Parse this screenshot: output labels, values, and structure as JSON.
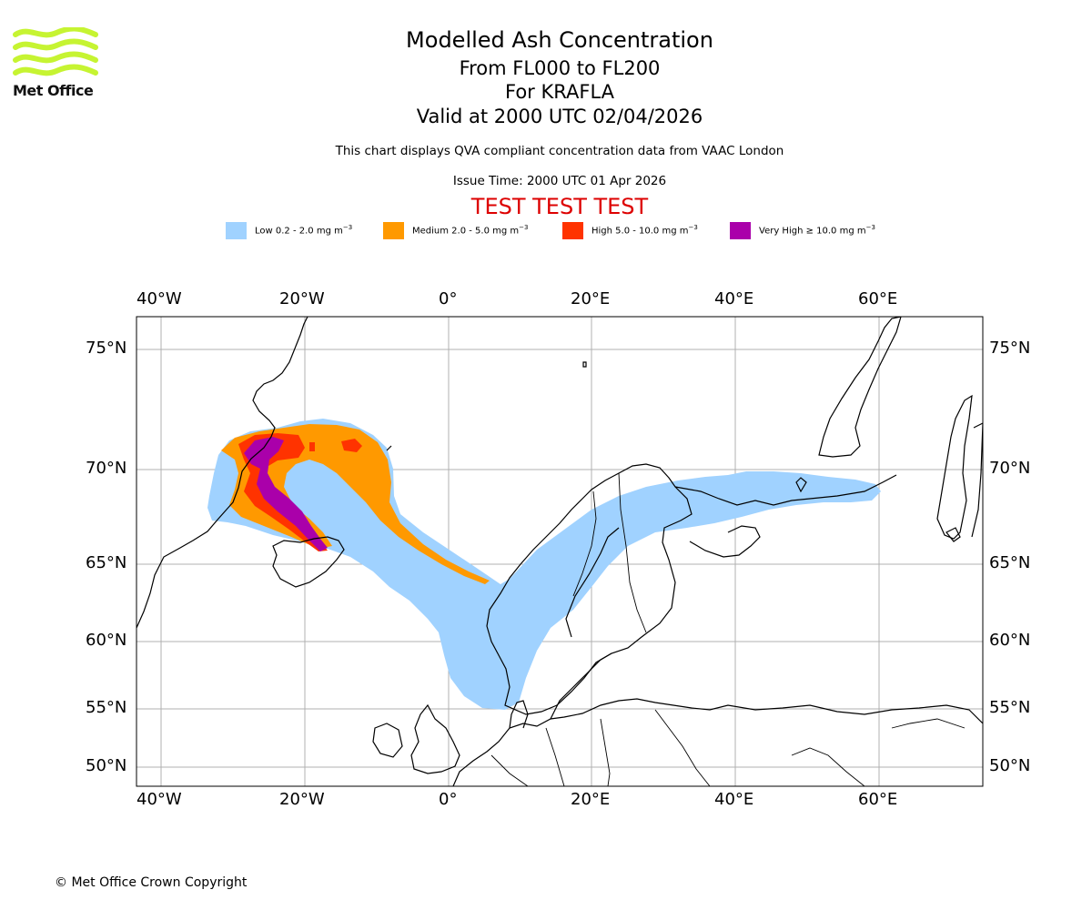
{
  "logo": {
    "brand_text": "Met Office"
  },
  "header": {
    "title": "Modelled Ash Concentration",
    "levels": "From FL000 to FL200",
    "volcano": "For KRAFLA",
    "valid": "Valid at 2000 UTC 02/04/2026",
    "description": "This chart displays QVA compliant concentration data from VAAC London",
    "issue_time": "Issue Time: 2000 UTC 01 Apr 2026",
    "test_banner": "TEST TEST TEST"
  },
  "legend": [
    {
      "label": "Low 0.2 - 2.0 mg m",
      "sup": "−3",
      "color": "#a0d2ff"
    },
    {
      "label": "Medium 2.0 - 5.0 mg m",
      "sup": "−3",
      "color": "#ff9900"
    },
    {
      "label": "High 5.0 - 10.0 mg m",
      "sup": "−3",
      "color": "#ff3300"
    },
    {
      "label": "Very High  ≥  10.0 mg m",
      "sup": "−3",
      "color": "#aa00aa"
    }
  ],
  "map": {
    "longitude_labels": [
      "40°W",
      "20°W",
      "0°",
      "20°E",
      "40°E",
      "60°E"
    ],
    "latitude_labels": [
      "75°N",
      "70°N",
      "65°N",
      "60°N",
      "55°N",
      "50°N"
    ],
    "longitudes": [
      -40,
      -20,
      0,
      20,
      40,
      60
    ],
    "latitudes": [
      75,
      70,
      65,
      60,
      55,
      50
    ]
  },
  "footer": {
    "copyright": "© Met Office Crown Copyright"
  }
}
